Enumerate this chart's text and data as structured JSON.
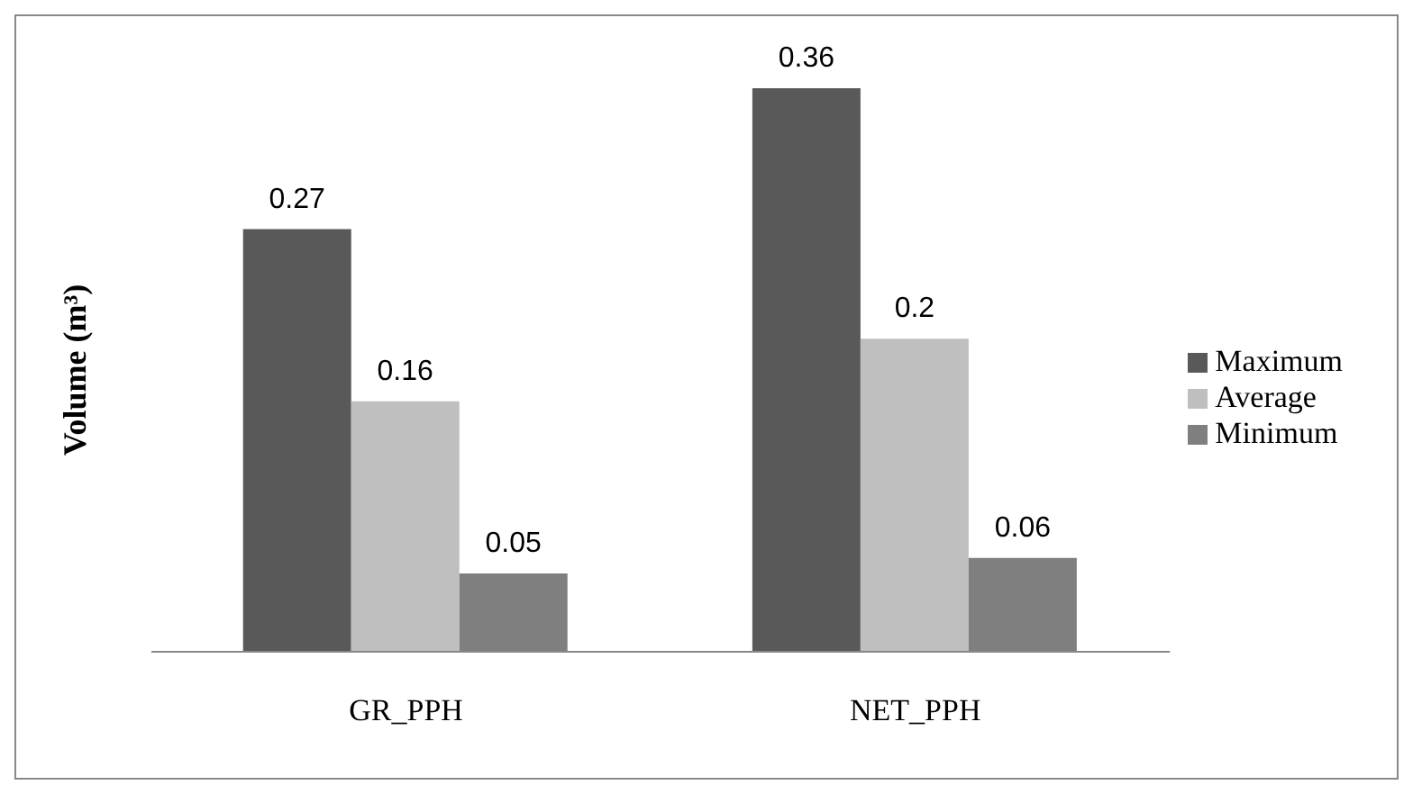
{
  "chart_data": {
    "type": "bar",
    "ylabel": "Volume (m³)",
    "categories": [
      "GR_PPH",
      "NET_PPH"
    ],
    "series": [
      {
        "name": "Maximum",
        "color": "#595959",
        "values": [
          0.27,
          0.36
        ]
      },
      {
        "name": "Average",
        "color": "#bfbfbf",
        "values": [
          0.16,
          0.2
        ]
      },
      {
        "name": "Minimum",
        "color": "#7f7f7f",
        "values": [
          0.05,
          0.06
        ]
      }
    ],
    "data_labels": true,
    "grid": false,
    "legend": "right"
  }
}
